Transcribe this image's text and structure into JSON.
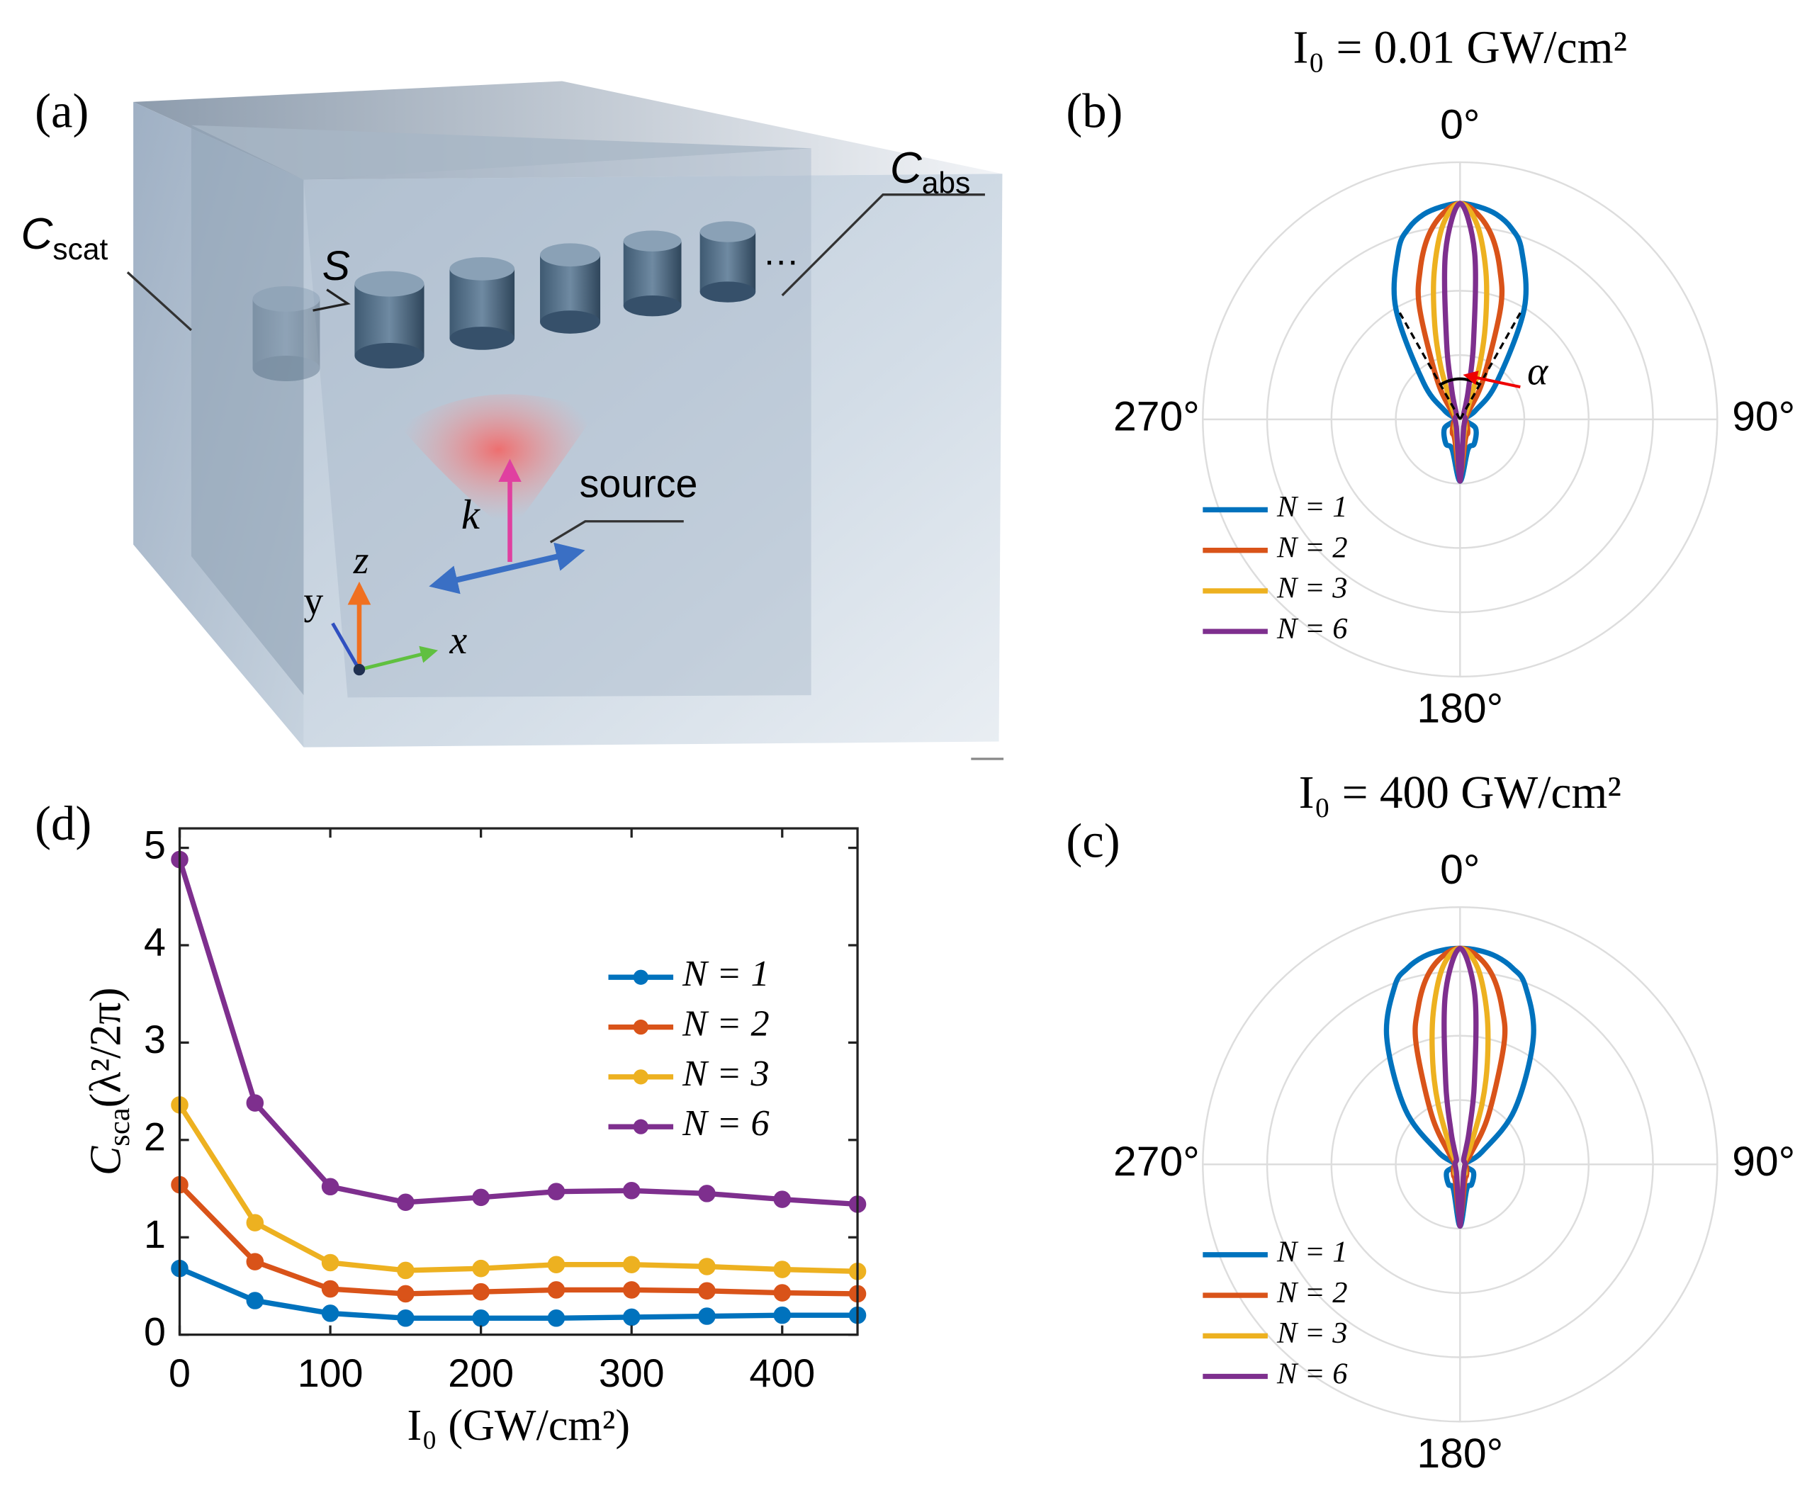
{
  "illustration": {
    "panel_label": "(a)",
    "labels": {
      "c_scat": [
        "C",
        "scat"
      ],
      "c_abs": [
        "C",
        "abs"
      ],
      "s": "S",
      "source": "source",
      "k": "k",
      "x": "x",
      "y": "y",
      "z": "z",
      "dots": "…"
    }
  },
  "chart_data": [
    {
      "type": "polar",
      "panel_label": "(b)",
      "title": "I₀ = 0.01 GW/cm²",
      "annotation": "α",
      "legend": "southwest",
      "rlim": [
        0,
        1
      ],
      "rticks": [
        0.25,
        0.5,
        0.75,
        1
      ],
      "thetaticks": [
        {
          "value": 0,
          "label": "0°"
        },
        {
          "value": 90,
          "label": "90°"
        },
        {
          "value": 180,
          "label": "180°"
        },
        {
          "value": 270,
          "label": "270°"
        }
      ],
      "theta": [
        0,
        5,
        10,
        15,
        20,
        30,
        45,
        60,
        90,
        120,
        150,
        165,
        180,
        195,
        210,
        240,
        270,
        300,
        315,
        330,
        340,
        345,
        350,
        355
      ],
      "series": [
        {
          "name": "N = 1",
          "color": "#0072BD",
          "r": [
            0.84,
            0.83,
            0.81,
            0.77,
            0.7,
            0.5,
            0.2,
            0.07,
            0.02,
            0.07,
            0.11,
            0.12,
            0.24,
            0.12,
            0.11,
            0.07,
            0.02,
            0.07,
            0.2,
            0.5,
            0.7,
            0.77,
            0.81,
            0.83
          ]
        },
        {
          "name": "N = 2",
          "color": "#D95319",
          "r": [
            0.84,
            0.8,
            0.72,
            0.6,
            0.46,
            0.18,
            0.05,
            0.03,
            0.02,
            0.03,
            0.06,
            0.08,
            0.22,
            0.08,
            0.06,
            0.03,
            0.02,
            0.03,
            0.05,
            0.18,
            0.46,
            0.6,
            0.72,
            0.8
          ]
        },
        {
          "name": "N = 3",
          "color": "#EDB120",
          "r": [
            0.84,
            0.76,
            0.58,
            0.38,
            0.22,
            0.07,
            0.03,
            0.02,
            0.02,
            0.02,
            0.04,
            0.06,
            0.22,
            0.06,
            0.04,
            0.02,
            0.02,
            0.02,
            0.03,
            0.07,
            0.22,
            0.38,
            0.58,
            0.76
          ]
        },
        {
          "name": "N = 6",
          "color": "#7E2F8E",
          "r": [
            0.84,
            0.65,
            0.3,
            0.13,
            0.07,
            0.03,
            0.02,
            0.02,
            0.02,
            0.02,
            0.03,
            0.05,
            0.24,
            0.05,
            0.03,
            0.02,
            0.02,
            0.02,
            0.02,
            0.03,
            0.07,
            0.13,
            0.3,
            0.65
          ]
        }
      ]
    },
    {
      "type": "polar",
      "panel_label": "(c)",
      "title": "I₀ = 400 GW/cm²",
      "legend": "southwest",
      "rlim": [
        0,
        1
      ],
      "rticks": [
        0.25,
        0.5,
        0.75,
        1
      ],
      "thetaticks": [
        {
          "value": 0,
          "label": "0°"
        },
        {
          "value": 90,
          "label": "90°"
        },
        {
          "value": 180,
          "label": "180°"
        },
        {
          "value": 270,
          "label": "270°"
        }
      ],
      "theta": [
        0,
        5,
        10,
        15,
        20,
        30,
        45,
        60,
        90,
        120,
        150,
        165,
        180,
        195,
        210,
        240,
        270,
        300,
        315,
        330,
        340,
        345,
        350,
        355
      ],
      "series": [
        {
          "name": "N = 1",
          "color": "#0072BD",
          "r": [
            0.84,
            0.835,
            0.82,
            0.79,
            0.74,
            0.57,
            0.3,
            0.1,
            0.02,
            0.06,
            0.09,
            0.1,
            0.24,
            0.1,
            0.09,
            0.06,
            0.02,
            0.1,
            0.3,
            0.57,
            0.74,
            0.79,
            0.82,
            0.835
          ]
        },
        {
          "name": "N = 2",
          "color": "#D95319",
          "r": [
            0.84,
            0.81,
            0.74,
            0.63,
            0.5,
            0.22,
            0.06,
            0.03,
            0.02,
            0.03,
            0.05,
            0.07,
            0.22,
            0.07,
            0.05,
            0.03,
            0.02,
            0.03,
            0.06,
            0.22,
            0.5,
            0.63,
            0.74,
            0.81
          ]
        },
        {
          "name": "N = 3",
          "color": "#EDB120",
          "r": [
            0.84,
            0.77,
            0.6,
            0.41,
            0.25,
            0.08,
            0.03,
            0.02,
            0.02,
            0.02,
            0.04,
            0.05,
            0.22,
            0.05,
            0.04,
            0.02,
            0.02,
            0.02,
            0.03,
            0.08,
            0.25,
            0.41,
            0.6,
            0.77
          ]
        },
        {
          "name": "N = 6",
          "color": "#7E2F8E",
          "r": [
            0.84,
            0.66,
            0.32,
            0.14,
            0.07,
            0.03,
            0.02,
            0.02,
            0.02,
            0.02,
            0.03,
            0.05,
            0.24,
            0.05,
            0.03,
            0.02,
            0.02,
            0.02,
            0.02,
            0.03,
            0.07,
            0.14,
            0.32,
            0.66
          ]
        }
      ]
    },
    {
      "type": "line",
      "panel_label": "(d)",
      "xlabel": "I₀ (GW/cm²)",
      "ylabel": [
        "C",
        "sca",
        "(λ²/2π)"
      ],
      "legend": "east",
      "x": [
        0,
        50,
        100,
        150,
        200,
        250,
        300,
        350,
        400,
        450
      ],
      "xlim": [
        0,
        450
      ],
      "xticks": [
        0,
        100,
        200,
        300,
        400
      ],
      "ylim": [
        0,
        5.2
      ],
      "yticks": [
        0,
        1,
        2,
        3,
        4,
        5
      ],
      "series": [
        {
          "name": "N = 1",
          "color": "#0072BD",
          "values": [
            0.68,
            0.35,
            0.22,
            0.17,
            0.17,
            0.17,
            0.18,
            0.19,
            0.2,
            0.2
          ]
        },
        {
          "name": "N = 2",
          "color": "#D95319",
          "values": [
            1.54,
            0.75,
            0.47,
            0.42,
            0.44,
            0.46,
            0.46,
            0.45,
            0.43,
            0.42
          ]
        },
        {
          "name": "N = 3",
          "color": "#EDB120",
          "values": [
            2.36,
            1.15,
            0.74,
            0.66,
            0.68,
            0.72,
            0.72,
            0.7,
            0.67,
            0.65
          ]
        },
        {
          "name": "N = 6",
          "color": "#7E2F8E",
          "values": [
            4.88,
            2.38,
            1.52,
            1.36,
            1.41,
            1.47,
            1.48,
            1.45,
            1.39,
            1.34
          ]
        }
      ]
    }
  ]
}
